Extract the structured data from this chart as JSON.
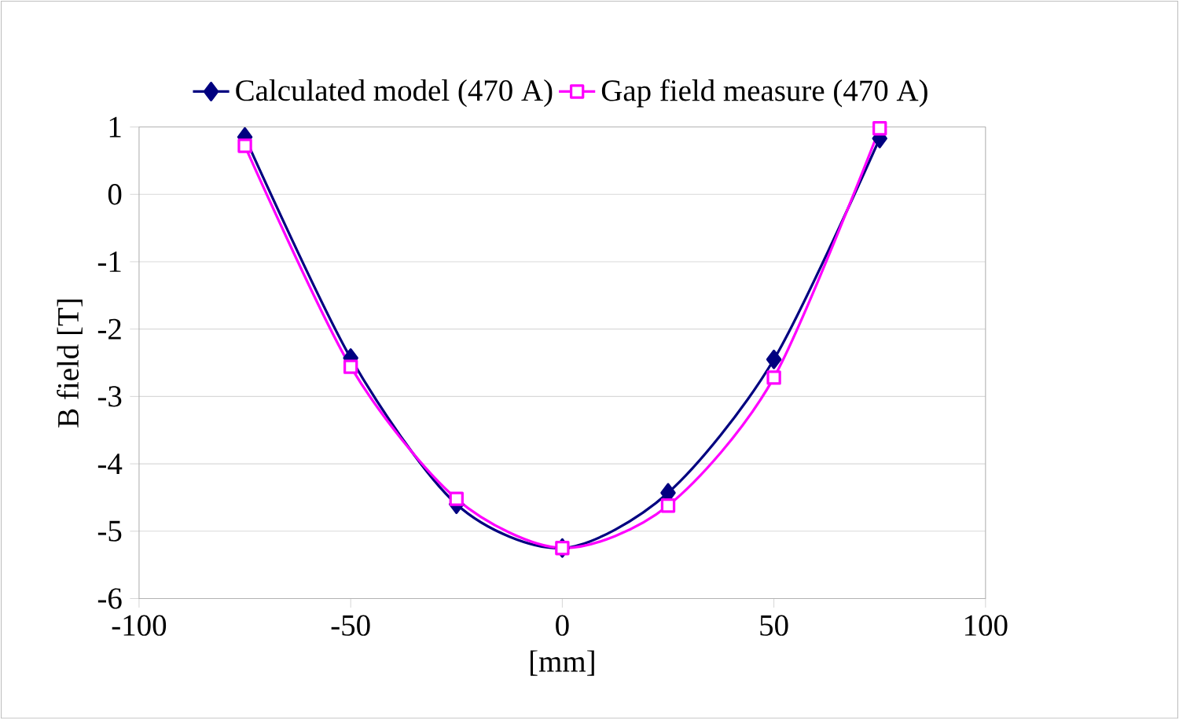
{
  "chart_data": {
    "type": "line",
    "xlabel": "[mm]",
    "ylabel": "B field [T]",
    "x": [
      -75,
      -50,
      -25,
      0,
      25,
      50,
      75
    ],
    "series": [
      {
        "name": "Calculated model (470 A)",
        "color": "#000080",
        "marker": "diamond",
        "values": [
          0.85,
          -2.43,
          -4.6,
          -5.25,
          -4.43,
          -2.45,
          0.83
        ]
      },
      {
        "name": "Gap field measure (470 A)",
        "color": "#ff00ff",
        "marker": "square",
        "values": [
          0.72,
          -2.56,
          -4.52,
          -5.25,
          -4.62,
          -2.72,
          0.98
        ]
      }
    ],
    "xlim": [
      -100,
      100
    ],
    "xticks": [
      -100,
      -50,
      0,
      50,
      100
    ],
    "ylim": [
      -6,
      1
    ],
    "yticks": [
      -6,
      -5,
      -4,
      -3,
      -2,
      -1,
      0,
      1
    ],
    "grid": "y",
    "legend": "top"
  }
}
